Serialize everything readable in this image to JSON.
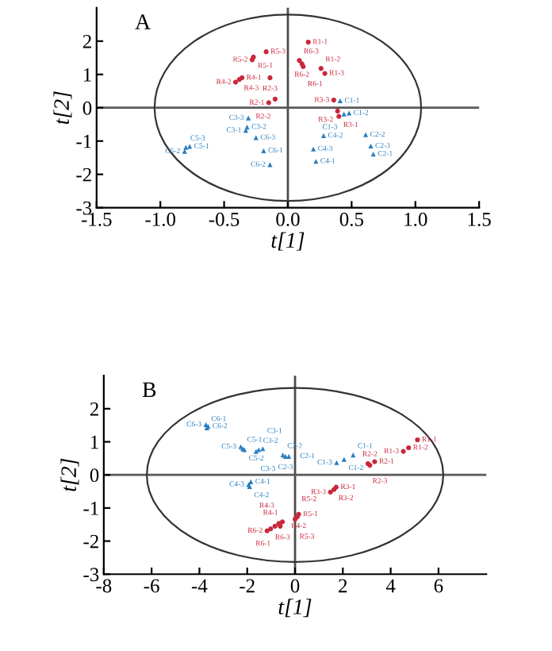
{
  "chart_data": [
    {
      "type": "scatter",
      "title": "A",
      "xlabel": "t[1]",
      "ylabel": "t[2]",
      "xlim": [
        -1.5,
        1.5
      ],
      "ylim": [
        -3,
        3
      ],
      "xticks": [
        -1.5,
        {
          "value": -1,
          "label": "-1.0"
        },
        -0.5,
        {
          "value": 0,
          "label": "0.0"
        },
        0.5,
        {
          "value": 1,
          "label": "1.0"
        },
        1.5
      ],
      "yticks": [
        -3,
        -2,
        -1,
        0,
        1,
        2
      ],
      "grid": false,
      "legend": false,
      "ref_lines": [
        {
          "axis": "x",
          "value": 0,
          "color": "#4d4d4d"
        },
        {
          "axis": "y",
          "value": 0,
          "color": "#5a5a5a"
        }
      ],
      "series": [
        {
          "type": "scatter",
          "color": "#c8283c",
          "marker": "circle",
          "x": [
            0.16,
            0.26,
            0.29,
            -0.27,
            -0.28,
            -0.17,
            0.09,
            0.11,
            0.12,
            -0.36,
            -0.41,
            -0.38,
            -0.14,
            -0.15,
            -0.1,
            0.36,
            0.39,
            0.4
          ],
          "values": [
            1.97,
            1.18,
            1.03,
            1.52,
            1.44,
            1.68,
            1.42,
            1.32,
            1.24,
            0.9,
            0.77,
            0.85,
            0.9,
            0.15,
            0.26,
            0.23,
            -0.1,
            -0.26
          ],
          "value_labels": [
            "R1-1",
            "R1-2",
            "R1-3",
            "R5-1",
            "R5-2",
            "R5-3",
            "R6-3",
            "R6-2",
            "R6-1",
            "R4-1",
            "R4-2",
            "R4-3",
            "R2-3",
            "R2-1",
            "R2-2",
            "R3-3",
            "R3-2",
            "R3-1"
          ]
        },
        {
          "type": "scatter",
          "color": "#2a7fc0",
          "marker": "triangle",
          "x": [
            0.41,
            0.48,
            0.44,
            0.61,
            0.65,
            0.67,
            -0.31,
            -0.32,
            -0.33,
            -0.25,
            0.28,
            0.2,
            0.22,
            -0.19,
            -0.14,
            -0.8,
            -0.77,
            -0.81
          ],
          "values": [
            0.21,
            -0.16,
            -0.19,
            -0.81,
            -1.15,
            -1.39,
            -0.31,
            -0.58,
            -0.68,
            -0.9,
            -0.84,
            -1.24,
            -1.61,
            -1.29,
            -1.71,
            -1.19,
            -1.16,
            -1.31
          ],
          "value_labels": [
            "C1-1",
            "C1-2",
            "C1-3",
            "C2-2",
            "C2-3",
            "C2-1",
            "C3-3",
            "C3-2",
            "C3-1",
            "C6-3",
            "C4-2",
            "C4-3",
            "C4-1",
            "C6-1",
            "C6-2",
            "C5-3",
            "C5-1",
            "C5-2"
          ]
        }
      ]
    },
    {
      "type": "scatter",
      "title": "B",
      "xlabel": "t[1]",
      "ylabel": "t[2]",
      "xlim": [
        -8,
        8
      ],
      "ylim": [
        -3,
        3
      ],
      "xticks": [
        -8,
        -6,
        -4,
        -2,
        0,
        2,
        4,
        6
      ],
      "yticks": [
        -3,
        -2,
        -1,
        0,
        1,
        2
      ],
      "grid": false,
      "legend": false,
      "ref_lines": [
        {
          "axis": "x",
          "value": 0,
          "color": "#4d4d4d"
        },
        {
          "axis": "y",
          "value": 0,
          "color": "#5a5a5a"
        }
      ],
      "series": [
        {
          "type": "scatter",
          "color": "#2a7fc0",
          "marker": "triangle",
          "x": [
            -3.73,
            -3.64,
            -3.69,
            -2.27,
            -2.19,
            -2.12,
            -1.52,
            -1.63,
            -1.35,
            -0.51,
            -0.26,
            -0.4,
            2.43,
            2.05,
            1.74,
            -1.94,
            -1.85,
            -1.9
          ],
          "values": [
            1.52,
            1.47,
            1.42,
            0.85,
            0.79,
            0.76,
            0.76,
            0.71,
            0.79,
            0.6,
            0.56,
            0.56,
            0.6,
            0.47,
            0.37,
            -0.29,
            -0.21,
            -0.35
          ],
          "value_labels": [
            "C6-3",
            "C6-2",
            "C6-1",
            "C5-3",
            "C5-1",
            "C5-2",
            "C3-2",
            "C3-3",
            "C3-1",
            "C2-2",
            "C2-1",
            "C2-3",
            "C1-1",
            "C1-2",
            "C1-3",
            "C4-3",
            "C4-1",
            "C4-2"
          ]
        },
        {
          "type": "scatter",
          "color": "#c8283c",
          "marker": "circle",
          "x": [
            5.12,
            4.53,
            4.75,
            3.05,
            3.33,
            3.13,
            1.63,
            1.72,
            1.48,
            -0.53,
            -0.84,
            -1.17,
            -1.02,
            -0.68,
            -0.62,
            0.15,
            0.09,
            0.0
          ],
          "values": [
            1.06,
            0.71,
            0.82,
            0.34,
            0.4,
            0.29,
            -0.44,
            -0.37,
            -0.52,
            -1.42,
            -1.55,
            -1.69,
            -1.63,
            -1.47,
            -1.55,
            -1.19,
            -1.27,
            -1.34
          ],
          "value_labels": [
            "R1-1",
            "R1-3",
            "R1-2",
            "R2-3",
            "R2-1",
            "R2-2",
            "R3-2",
            "R3-1",
            "R3-3",
            "R4-1",
            "R6-1",
            "R6-2",
            "R6-3",
            "R4-3",
            "R4-2",
            "R5-1",
            "R5-2",
            "R5-3"
          ]
        }
      ]
    }
  ]
}
